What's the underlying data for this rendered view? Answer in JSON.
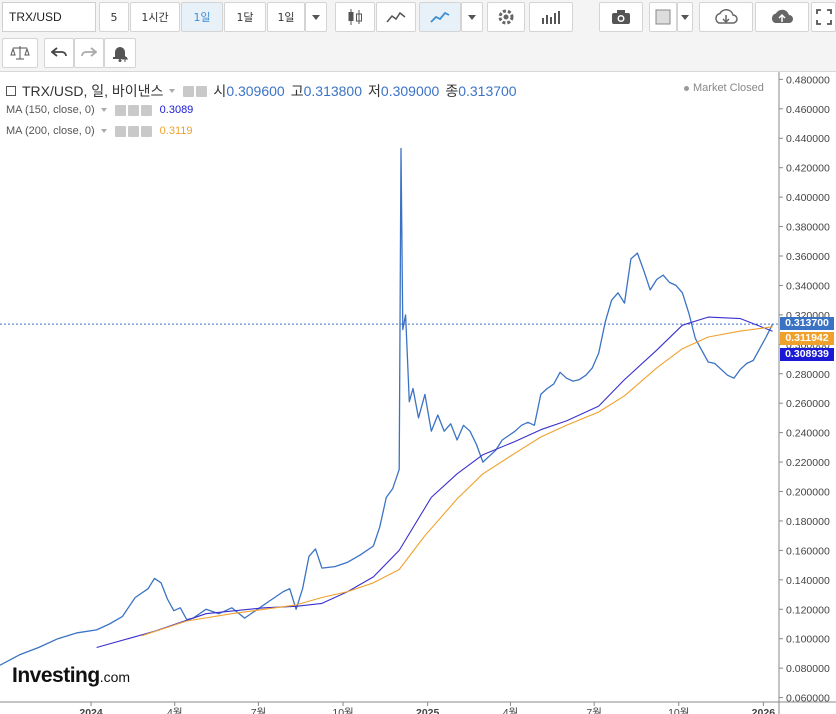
{
  "toolbar": {
    "symbol": "TRX/USD",
    "intervals": [
      "5",
      "1시간",
      "1일",
      "1달",
      "1일"
    ],
    "active_interval_index": 2,
    "icons": [
      "candlestick-icon",
      "bar-chart-icon",
      "line-chart-icon",
      "settings-icon",
      "indicators-icon",
      "camera-icon",
      "color-box-icon",
      "cloud-download-icon",
      "cloud-upload-icon",
      "fullscreen-icon",
      "balance-icon",
      "undo-icon",
      "redo-icon",
      "alert-add-icon"
    ]
  },
  "legend": {
    "title": "TRX/USD, 일, 바이낸스",
    "open_label": "시",
    "open": "0.309600",
    "high_label": "고",
    "high": "0.313800",
    "low_label": "저",
    "low": "0.309000",
    "close_label": "종",
    "close": "0.313700",
    "ma1_label": "MA (150, close, 0)",
    "ma1_value": "0.3089",
    "ma2_label": "MA (200, close, 0)",
    "ma2_value": "0.3119"
  },
  "market_status": "Market Closed",
  "watermark": {
    "brand": "Investing",
    "suffix": ".com"
  },
  "price_tags": [
    {
      "value": "0.313700",
      "color": "#3b73c4"
    },
    {
      "value": "0.311942",
      "color": "#f0a12c"
    },
    {
      "value": "0.308939",
      "color": "#1a1ad6"
    }
  ],
  "chart_data": {
    "type": "line",
    "x_tick_labels": [
      "2024",
      "4월",
      "7월",
      "10월",
      "2025",
      "4월",
      "7월",
      "10월",
      "2026"
    ],
    "y_tick_labels": [
      "0.060000",
      "0.080000",
      "0.100000",
      "0.120000",
      "0.140000",
      "0.160000",
      "0.180000",
      "0.200000",
      "0.220000",
      "0.240000",
      "0.260000",
      "0.280000",
      "0.300000",
      "0.320000",
      "0.340000",
      "0.360000",
      "0.380000",
      "0.400000",
      "0.420000",
      "0.440000",
      "0.460000",
      "0.480000"
    ],
    "ylim": [
      0.057,
      0.485
    ],
    "x_start": "2023-09-24",
    "x_end": "2026-01-18",
    "last_price": 0.3137,
    "colors": {
      "price": "#3b73c4",
      "ma150": "#3a2fd0",
      "ma200": "#f0a12c"
    },
    "series": [
      {
        "name": "TRX/USD",
        "points": [
          [
            "2023-09-24",
            0.082
          ],
          [
            "2023-10-15",
            0.089
          ],
          [
            "2023-11-05",
            0.094
          ],
          [
            "2023-11-26",
            0.1
          ],
          [
            "2023-12-17",
            0.104
          ],
          [
            "2024-01-07",
            0.106
          ],
          [
            "2024-01-21",
            0.11
          ],
          [
            "2024-02-04",
            0.115
          ],
          [
            "2024-02-18",
            0.128
          ],
          [
            "2024-03-03",
            0.134
          ],
          [
            "2024-03-10",
            0.141
          ],
          [
            "2024-03-17",
            0.138
          ],
          [
            "2024-03-24",
            0.127
          ],
          [
            "2024-03-31",
            0.119
          ],
          [
            "2024-04-07",
            0.121
          ],
          [
            "2024-04-14",
            0.113
          ],
          [
            "2024-04-21",
            0.114
          ],
          [
            "2024-05-05",
            0.12
          ],
          [
            "2024-05-19",
            0.117
          ],
          [
            "2024-06-02",
            0.121
          ],
          [
            "2024-06-16",
            0.114
          ],
          [
            "2024-06-30",
            0.12
          ],
          [
            "2024-07-14",
            0.126
          ],
          [
            "2024-07-28",
            0.132
          ],
          [
            "2024-08-04",
            0.134
          ],
          [
            "2024-08-11",
            0.12
          ],
          [
            "2024-08-18",
            0.134
          ],
          [
            "2024-08-25",
            0.156
          ],
          [
            "2024-09-01",
            0.161
          ],
          [
            "2024-09-08",
            0.148
          ],
          [
            "2024-09-22",
            0.149
          ],
          [
            "2024-10-06",
            0.152
          ],
          [
            "2024-10-20",
            0.157
          ],
          [
            "2024-11-03",
            0.163
          ],
          [
            "2024-11-10",
            0.176
          ],
          [
            "2024-11-17",
            0.196
          ],
          [
            "2024-11-24",
            0.202
          ],
          [
            "2024-12-01",
            0.215
          ],
          [
            "2024-12-03",
            0.433
          ],
          [
            "2024-12-05",
            0.31
          ],
          [
            "2024-12-08",
            0.32
          ],
          [
            "2024-12-12",
            0.261
          ],
          [
            "2024-12-16",
            0.27
          ],
          [
            "2024-12-22",
            0.25
          ],
          [
            "2024-12-29",
            0.266
          ],
          [
            "2025-01-05",
            0.241
          ],
          [
            "2025-01-12",
            0.252
          ],
          [
            "2025-01-19",
            0.241
          ],
          [
            "2025-01-26",
            0.246
          ],
          [
            "2025-02-02",
            0.235
          ],
          [
            "2025-02-09",
            0.245
          ],
          [
            "2025-02-16",
            0.241
          ],
          [
            "2025-02-23",
            0.232
          ],
          [
            "2025-03-02",
            0.22
          ],
          [
            "2025-03-09",
            0.224
          ],
          [
            "2025-03-16",
            0.228
          ],
          [
            "2025-03-23",
            0.235
          ],
          [
            "2025-03-30",
            0.238
          ],
          [
            "2025-04-06",
            0.241
          ],
          [
            "2025-04-13",
            0.245
          ],
          [
            "2025-04-20",
            0.247
          ],
          [
            "2025-04-27",
            0.245
          ],
          [
            "2025-05-04",
            0.266
          ],
          [
            "2025-05-11",
            0.27
          ],
          [
            "2025-05-18",
            0.273
          ],
          [
            "2025-05-25",
            0.281
          ],
          [
            "2025-06-01",
            0.277
          ],
          [
            "2025-06-08",
            0.275
          ],
          [
            "2025-06-15",
            0.276
          ],
          [
            "2025-06-22",
            0.279
          ],
          [
            "2025-06-29",
            0.284
          ],
          [
            "2025-07-06",
            0.294
          ],
          [
            "2025-07-13",
            0.315
          ],
          [
            "2025-07-20",
            0.33
          ],
          [
            "2025-07-27",
            0.335
          ],
          [
            "2025-08-03",
            0.328
          ],
          [
            "2025-08-10",
            0.358
          ],
          [
            "2025-08-17",
            0.362
          ],
          [
            "2025-08-24",
            0.35
          ],
          [
            "2025-08-31",
            0.337
          ],
          [
            "2025-09-07",
            0.344
          ],
          [
            "2025-09-14",
            0.347
          ],
          [
            "2025-09-21",
            0.342
          ],
          [
            "2025-09-28",
            0.34
          ],
          [
            "2025-10-05",
            0.335
          ],
          [
            "2025-10-12",
            0.321
          ],
          [
            "2025-10-19",
            0.304
          ],
          [
            "2025-10-26",
            0.296
          ],
          [
            "2025-11-02",
            0.288
          ],
          [
            "2025-11-09",
            0.287
          ],
          [
            "2025-11-16",
            0.283
          ],
          [
            "2025-11-23",
            0.279
          ],
          [
            "2025-11-30",
            0.277
          ],
          [
            "2025-12-07",
            0.283
          ],
          [
            "2025-12-14",
            0.287
          ],
          [
            "2025-12-21",
            0.289
          ],
          [
            "2025-12-28",
            0.297
          ],
          [
            "2026-01-04",
            0.305
          ],
          [
            "2026-01-11",
            0.3137
          ]
        ]
      },
      {
        "name": "MA (150, close, 0)",
        "points": [
          [
            "2024-01-07",
            0.094
          ],
          [
            "2024-03-10",
            0.105
          ],
          [
            "2024-05-05",
            0.117
          ],
          [
            "2024-07-07",
            0.121
          ],
          [
            "2024-08-11",
            0.122
          ],
          [
            "2024-09-08",
            0.124
          ],
          [
            "2024-10-06",
            0.132
          ],
          [
            "2024-11-03",
            0.142
          ],
          [
            "2024-12-01",
            0.16
          ],
          [
            "2025-01-05",
            0.196
          ],
          [
            "2025-02-02",
            0.212
          ],
          [
            "2025-03-02",
            0.225
          ],
          [
            "2025-04-06",
            0.234
          ],
          [
            "2025-05-04",
            0.242
          ],
          [
            "2025-06-01",
            0.248
          ],
          [
            "2025-07-06",
            0.258
          ],
          [
            "2025-08-03",
            0.276
          ],
          [
            "2025-09-07",
            0.296
          ],
          [
            "2025-10-05",
            0.313
          ],
          [
            "2025-11-02",
            0.3185
          ],
          [
            "2025-12-07",
            0.3175
          ],
          [
            "2026-01-11",
            0.3089
          ]
        ]
      },
      {
        "name": "MA (200, close, 0)",
        "points": [
          [
            "2024-02-25",
            0.102
          ],
          [
            "2024-04-14",
            0.112
          ],
          [
            "2024-06-02",
            0.117
          ],
          [
            "2024-07-07",
            0.12
          ],
          [
            "2024-08-11",
            0.123
          ],
          [
            "2024-09-08",
            0.128
          ],
          [
            "2024-10-06",
            0.132
          ],
          [
            "2024-11-03",
            0.138
          ],
          [
            "2024-12-01",
            0.147
          ],
          [
            "2024-12-29",
            0.17
          ],
          [
            "2025-02-02",
            0.195
          ],
          [
            "2025-03-02",
            0.212
          ],
          [
            "2025-04-06",
            0.226
          ],
          [
            "2025-05-04",
            0.237
          ],
          [
            "2025-06-01",
            0.245
          ],
          [
            "2025-07-06",
            0.254
          ],
          [
            "2025-08-03",
            0.265
          ],
          [
            "2025-09-07",
            0.284
          ],
          [
            "2025-10-05",
            0.297
          ],
          [
            "2025-11-02",
            0.305
          ],
          [
            "2025-12-07",
            0.309
          ],
          [
            "2026-01-11",
            0.3119
          ]
        ]
      }
    ]
  }
}
